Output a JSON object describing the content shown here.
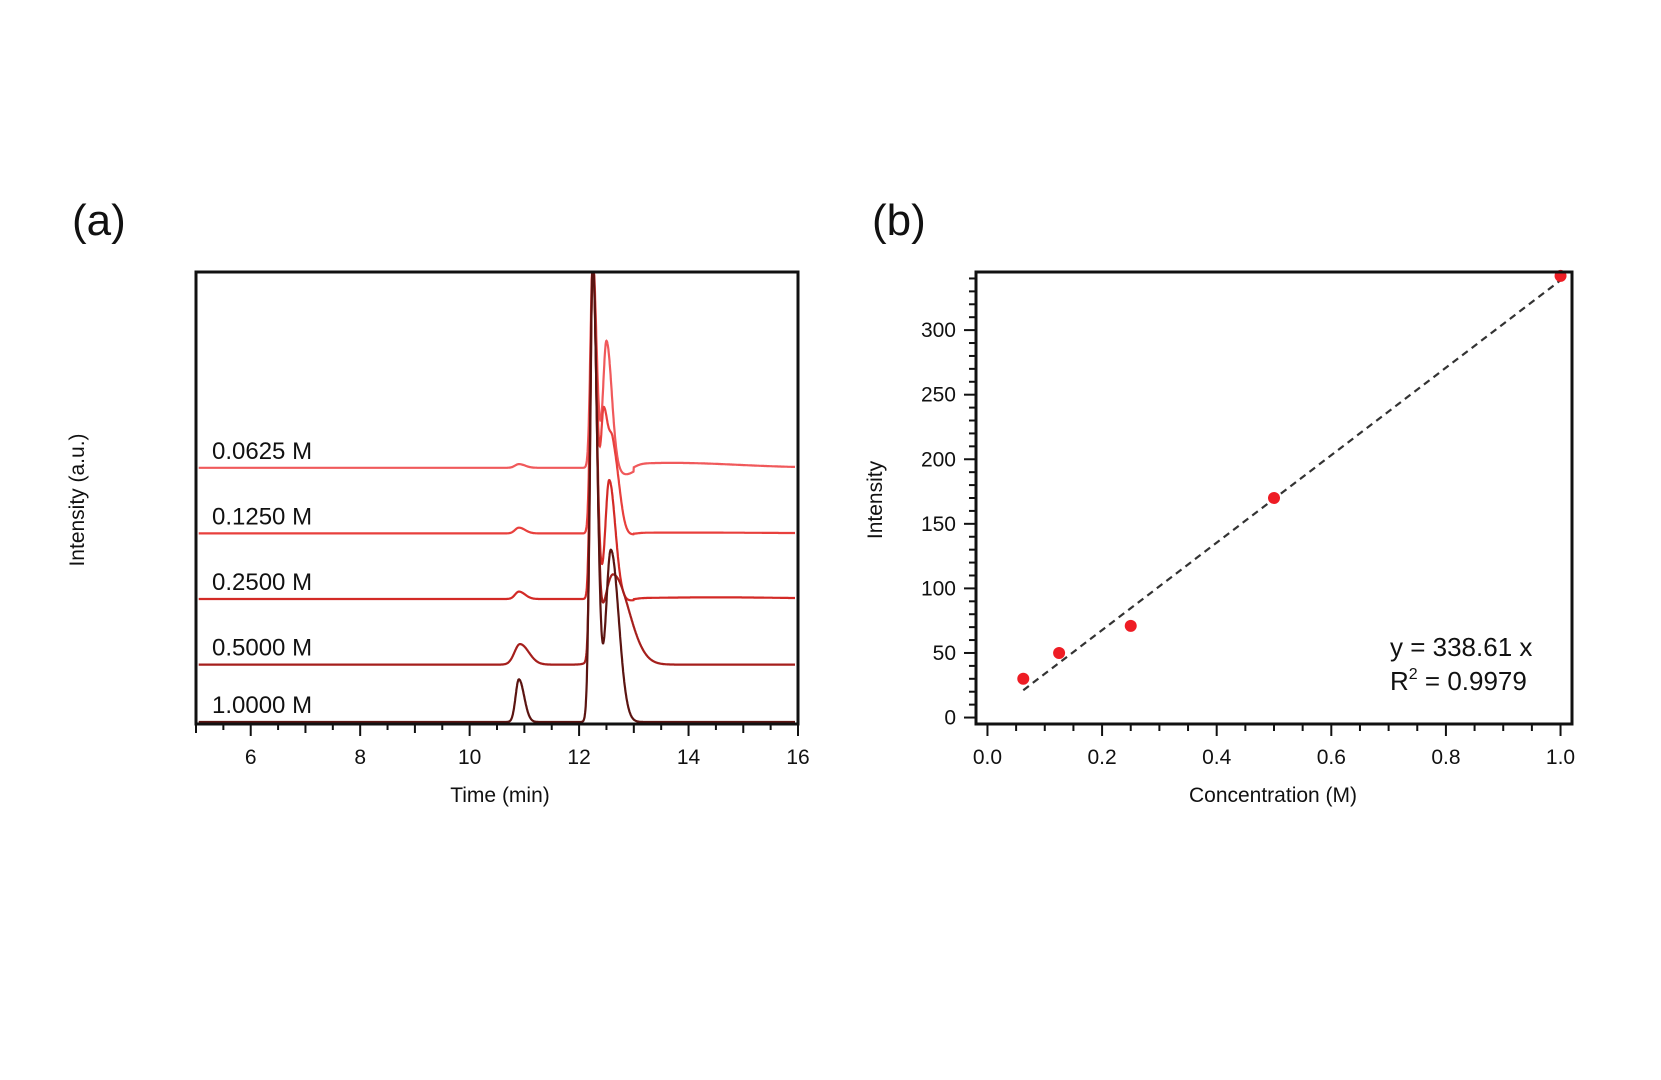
{
  "chart_data": [
    {
      "panel": "(a)",
      "type": "line",
      "title": "",
      "xlabel": "Time (min)",
      "ylabel": "Intensity (a.u.)",
      "xlim": [
        5,
        16
      ],
      "xticks": [
        6,
        8,
        10,
        12,
        14,
        16
      ],
      "grid": false,
      "series": [
        {
          "name": "0.0625 M",
          "color": "#f0595b",
          "offset": 3.1,
          "peaks": [
            {
              "t": 10.9,
              "h": 0.045,
              "w": 0.07
            },
            {
              "t": 12.25,
              "h": 2.55,
              "w": 0.042
            },
            {
              "t": 12.5,
              "h": 1.55,
              "w": 0.06
            }
          ],
          "dip": {
            "t": 12.85,
            "h": -0.08,
            "w": 0.14
          },
          "hump": {
            "t": 13.7,
            "h": 0.06,
            "w": 1.2
          }
        },
        {
          "name": "0.1250 M",
          "color": "#e8403d",
          "offset": 2.3,
          "peaks": [
            {
              "t": 10.9,
              "h": 0.07,
              "w": 0.07
            },
            {
              "t": 12.25,
              "h": 3.35,
              "w": 0.042
            },
            {
              "t": 12.45,
              "h": 1.45,
              "w": 0.05
            },
            {
              "t": 12.62,
              "h": 1.0,
              "w": 0.07
            }
          ],
          "dip": {
            "t": 12.9,
            "h": -0.02,
            "w": 0.12
          },
          "hump": {
            "t": 14.0,
            "h": 0.01,
            "w": 1.5
          }
        },
        {
          "name": "0.2500 M",
          "color": "#d32a26",
          "offset": 1.5,
          "peaks": [
            {
              "t": 10.9,
              "h": 0.09,
              "w": 0.07
            },
            {
              "t": 12.25,
              "h": 4.15,
              "w": 0.042
            },
            {
              "t": 12.55,
              "h": 1.45,
              "w": 0.07
            }
          ],
          "dip": {
            "t": 12.9,
            "h": -0.02,
            "w": 0.12
          },
          "hump": {
            "t": 14.5,
            "h": 0.02,
            "w": 1.4
          }
        },
        {
          "name": "0.5000 M",
          "color": "#a51f1c",
          "offset": 0.7,
          "peaks": [
            {
              "t": 10.92,
              "h": 0.25,
              "w": 0.1
            },
            {
              "t": 12.25,
              "h": 4.9,
              "w": 0.042
            },
            {
              "t": 12.62,
              "h": 1.1,
              "w": 0.18
            }
          ],
          "dip": {
            "t": 13.0,
            "h": 0,
            "w": 0.1
          },
          "hump": {
            "t": 14.0,
            "h": 0,
            "w": 1.0
          }
        },
        {
          "name": "1.0000 M",
          "color": "#5b1411",
          "offset": 0.0,
          "peaks": [
            {
              "t": 10.9,
              "h": 0.52,
              "w": 0.06
            },
            {
              "t": 12.25,
              "h": 5.6,
              "w": 0.05
            },
            {
              "t": 12.58,
              "h": 2.1,
              "w": 0.09
            }
          ],
          "dip": {
            "t": 13.0,
            "h": 0,
            "w": 0.1
          },
          "hump": {
            "t": 14.0,
            "h": 0,
            "w": 1.0
          }
        }
      ]
    },
    {
      "panel": "(b)",
      "type": "scatter",
      "title": "",
      "xlabel": "Concentration (M)",
      "ylabel": "Intensity",
      "xlim": [
        -0.02,
        1.02
      ],
      "ylim": [
        -5,
        345
      ],
      "xticks": [
        "0.0",
        "0.2",
        "0.4",
        "0.6",
        "0.8",
        "1.0"
      ],
      "yticks": [
        0,
        50,
        100,
        150,
        200,
        250,
        300
      ],
      "grid": false,
      "series": [
        {
          "name": "data",
          "color": "#ee1c24",
          "x": [
            0.0625,
            0.125,
            0.25,
            0.5,
            1.0
          ],
          "y": [
            30,
            50,
            71,
            170,
            342
          ]
        }
      ],
      "fit": {
        "slope": 338.61,
        "x_range": [
          0.0625,
          1.0
        ],
        "style": "dashed",
        "color": "#333333"
      },
      "annotations": {
        "equation": "y = 338.61 x",
        "r2_label": "R",
        "r2_sup": "2",
        "r2_value": " = 0.9979"
      }
    }
  ]
}
